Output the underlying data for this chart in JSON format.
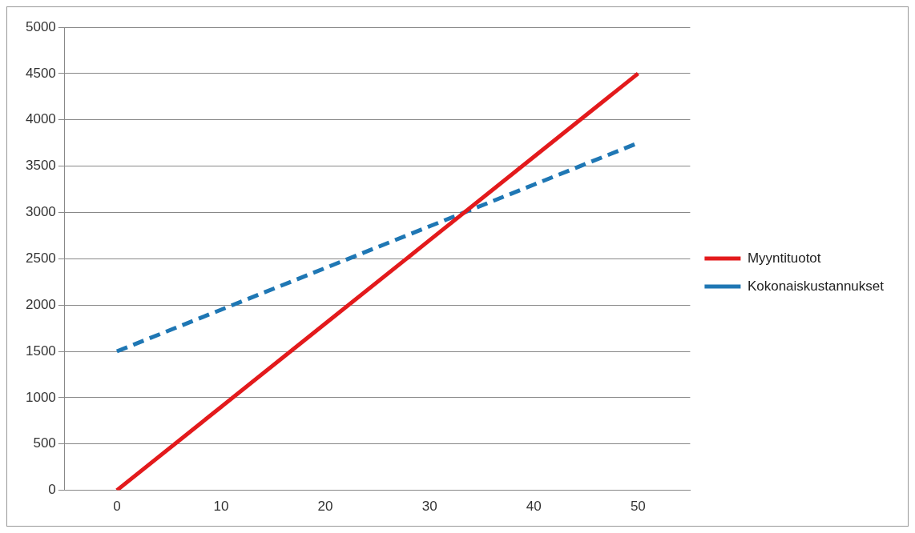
{
  "chart_data": {
    "type": "line",
    "categories": [
      "0",
      "10",
      "20",
      "30",
      "40",
      "50"
    ],
    "series": [
      {
        "name": "Myyntituotot",
        "color": "#e31a1c",
        "values": [
          0,
          900,
          1800,
          2700,
          3600,
          4500
        ],
        "line_style": "solid"
      },
      {
        "name": "Kokonaiskustannukset",
        "color": "#1f77b4",
        "values": [
          1500,
          1950,
          2400,
          2850,
          3300,
          3750
        ],
        "line_style": "dashed"
      }
    ],
    "ylim": [
      0,
      5000
    ],
    "yticks": [
      0,
      500,
      1000,
      1500,
      2000,
      2500,
      3000,
      3500,
      4000,
      4500,
      5000
    ],
    "grid": "y",
    "legend": "right",
    "marker": "none"
  }
}
